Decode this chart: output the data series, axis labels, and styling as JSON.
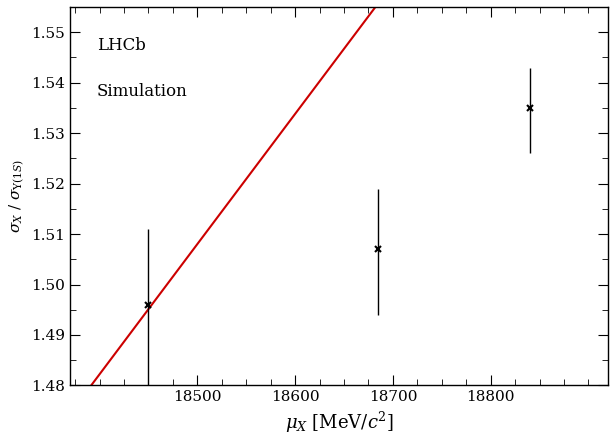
{
  "x": [
    18450,
    18685,
    18840
  ],
  "y": [
    1.496,
    1.507,
    1.535
  ],
  "yerr_lower": [
    0.017,
    0.013,
    0.009
  ],
  "yerr_upper": [
    0.015,
    0.012,
    0.008
  ],
  "fit_x": [
    18370,
    18920
  ],
  "fit_slope": 0.000258,
  "fit_intercept": -3.265,
  "xlim": [
    18370,
    18920
  ],
  "ylim": [
    1.48,
    1.555
  ],
  "xticks": [
    18500,
    18600,
    18700,
    18800
  ],
  "yticks": [
    1.48,
    1.49,
    1.5,
    1.51,
    1.52,
    1.53,
    1.54,
    1.55
  ],
  "xlabel": "$\\mu_{X}$ [MeV/$c^{2}$]",
  "ylabel": "$\\sigma_{X}$ / $\\sigma_{\\Upsilon(1S)}$",
  "annotation_line1": "LHCb",
  "annotation_line2": "Simulation",
  "line_color": "#cc0000",
  "marker_color": "black",
  "background_color": "#ffffff",
  "font_family": "serif"
}
